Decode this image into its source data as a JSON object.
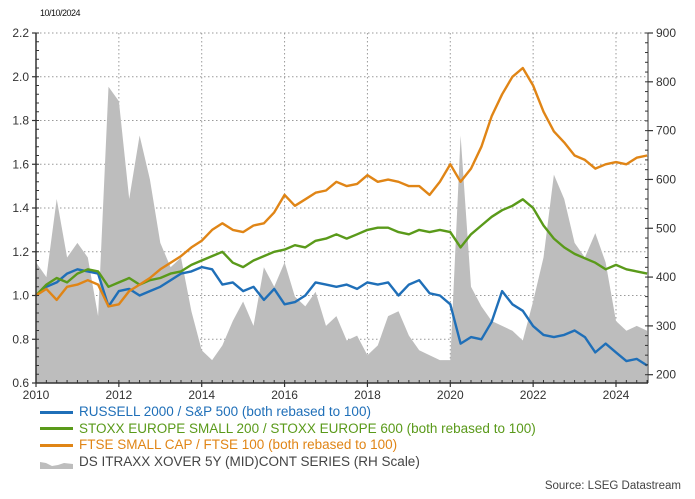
{
  "header": {
    "date_label": "10/10/2024"
  },
  "legend": {
    "items": [
      {
        "label": "RUSSELL 2000 / S&P 500 (both rebased to 100)",
        "color": "#1f6fb8",
        "kind": "line"
      },
      {
        "label": "STOXX EUROPE SMALL 200 / STOXX EUROPE 600 (both rebased to 100)",
        "color": "#5a9a1a",
        "kind": "line"
      },
      {
        "label": "FTSE SMALL CAP / FTSE 100 (both rebased to 100)",
        "color": "#e08516",
        "kind": "line"
      },
      {
        "label": "DS ITRAXX XOVER 5Y (MID)CONT SERIES (RH Scale)",
        "color": "#bdbdbd",
        "kind": "area"
      }
    ]
  },
  "footer": {
    "source": "Source: LSEG Datastream"
  },
  "chart_data": {
    "type": "line",
    "title": "",
    "xlabel": "",
    "ylabel": "",
    "xlim": [
      2010,
      2024.78
    ],
    "ylim": [
      0.6,
      2.2
    ],
    "y2lim": [
      183,
      900
    ],
    "grid": true,
    "legend_position": "bottom",
    "x_ticks": [
      "2010",
      "2012",
      "2014",
      "2016",
      "2018",
      "2020",
      "2022",
      "2024"
    ],
    "y_ticks": [
      "0.6",
      "0.8",
      "1.0",
      "1.2",
      "1.4",
      "1.6",
      "1.8",
      "2.0",
      "2.2"
    ],
    "y2_ticks": [
      "200",
      "300",
      "400",
      "500",
      "600",
      "700",
      "800",
      "900"
    ],
    "x": [
      2010.0,
      2010.25,
      2010.5,
      2010.75,
      2011.0,
      2011.25,
      2011.5,
      2011.75,
      2012.0,
      2012.25,
      2012.5,
      2012.75,
      2013.0,
      2013.25,
      2013.5,
      2013.75,
      2014.0,
      2014.25,
      2014.5,
      2014.75,
      2015.0,
      2015.25,
      2015.5,
      2015.75,
      2016.0,
      2016.25,
      2016.5,
      2016.75,
      2017.0,
      2017.25,
      2017.5,
      2017.75,
      2018.0,
      2018.25,
      2018.5,
      2018.75,
      2019.0,
      2019.25,
      2019.5,
      2019.75,
      2020.0,
      2020.25,
      2020.5,
      2020.75,
      2021.0,
      2021.25,
      2021.5,
      2021.75,
      2022.0,
      2022.25,
      2022.5,
      2022.75,
      2023.0,
      2023.25,
      2023.5,
      2023.75,
      2024.0,
      2024.25,
      2024.5,
      2024.75
    ],
    "series": [
      {
        "name": "RUSSELL 2000 / S&P 500 (both rebased to 100)",
        "axis": "left",
        "color": "#1f6fb8",
        "values": [
          1.0,
          1.04,
          1.06,
          1.1,
          1.12,
          1.11,
          1.1,
          0.95,
          1.02,
          1.03,
          1.0,
          1.02,
          1.04,
          1.07,
          1.1,
          1.11,
          1.13,
          1.12,
          1.05,
          1.06,
          1.02,
          1.04,
          0.98,
          1.03,
          0.96,
          0.97,
          1.0,
          1.06,
          1.05,
          1.04,
          1.05,
          1.03,
          1.06,
          1.05,
          1.06,
          1.0,
          1.05,
          1.07,
          1.01,
          1.0,
          0.96,
          0.78,
          0.81,
          0.8,
          0.88,
          1.02,
          0.96,
          0.93,
          0.86,
          0.82,
          0.81,
          0.82,
          0.84,
          0.81,
          0.74,
          0.78,
          0.74,
          0.7,
          0.71,
          0.68
        ]
      },
      {
        "name": "STOXX EUROPE SMALL 200 / STOXX EUROPE 600 (both rebased to 100)",
        "axis": "left",
        "color": "#5a9a1a",
        "values": [
          1.0,
          1.05,
          1.08,
          1.06,
          1.1,
          1.12,
          1.11,
          1.04,
          1.06,
          1.08,
          1.05,
          1.07,
          1.08,
          1.1,
          1.11,
          1.14,
          1.16,
          1.18,
          1.2,
          1.15,
          1.13,
          1.16,
          1.18,
          1.2,
          1.21,
          1.23,
          1.22,
          1.25,
          1.26,
          1.28,
          1.26,
          1.28,
          1.3,
          1.31,
          1.31,
          1.29,
          1.28,
          1.3,
          1.29,
          1.3,
          1.29,
          1.22,
          1.28,
          1.32,
          1.36,
          1.39,
          1.41,
          1.44,
          1.4,
          1.32,
          1.26,
          1.22,
          1.19,
          1.17,
          1.15,
          1.12,
          1.14,
          1.12,
          1.11,
          1.1
        ]
      },
      {
        "name": "FTSE SMALL CAP / FTSE 100 (both rebased to 100)",
        "axis": "left",
        "color": "#e08516",
        "values": [
          1.0,
          1.03,
          0.98,
          1.04,
          1.05,
          1.07,
          1.05,
          0.95,
          0.96,
          1.02,
          1.05,
          1.08,
          1.12,
          1.15,
          1.18,
          1.22,
          1.25,
          1.3,
          1.33,
          1.3,
          1.29,
          1.32,
          1.33,
          1.38,
          1.46,
          1.41,
          1.44,
          1.47,
          1.48,
          1.52,
          1.5,
          1.51,
          1.55,
          1.52,
          1.53,
          1.52,
          1.5,
          1.5,
          1.46,
          1.52,
          1.6,
          1.52,
          1.58,
          1.68,
          1.82,
          1.92,
          2.0,
          2.04,
          1.96,
          1.84,
          1.75,
          1.7,
          1.64,
          1.62,
          1.58,
          1.6,
          1.61,
          1.6,
          1.63,
          1.64
        ]
      },
      {
        "name": "DS ITRAXX XOVER 5Y (MID)CONT SERIES (RH Scale)",
        "axis": "right",
        "type": "area",
        "color": "#bdbdbd",
        "values": [
          430,
          400,
          560,
          440,
          470,
          440,
          320,
          790,
          760,
          560,
          690,
          600,
          470,
          420,
          440,
          330,
          250,
          230,
          260,
          310,
          350,
          300,
          420,
          380,
          430,
          360,
          340,
          370,
          300,
          320,
          270,
          280,
          240,
          260,
          320,
          330,
          280,
          250,
          240,
          230,
          230,
          690,
          380,
          340,
          310,
          300,
          290,
          270,
          350,
          440,
          610,
          560,
          470,
          440,
          490,
          430,
          310,
          290,
          300,
          290
        ]
      }
    ]
  }
}
